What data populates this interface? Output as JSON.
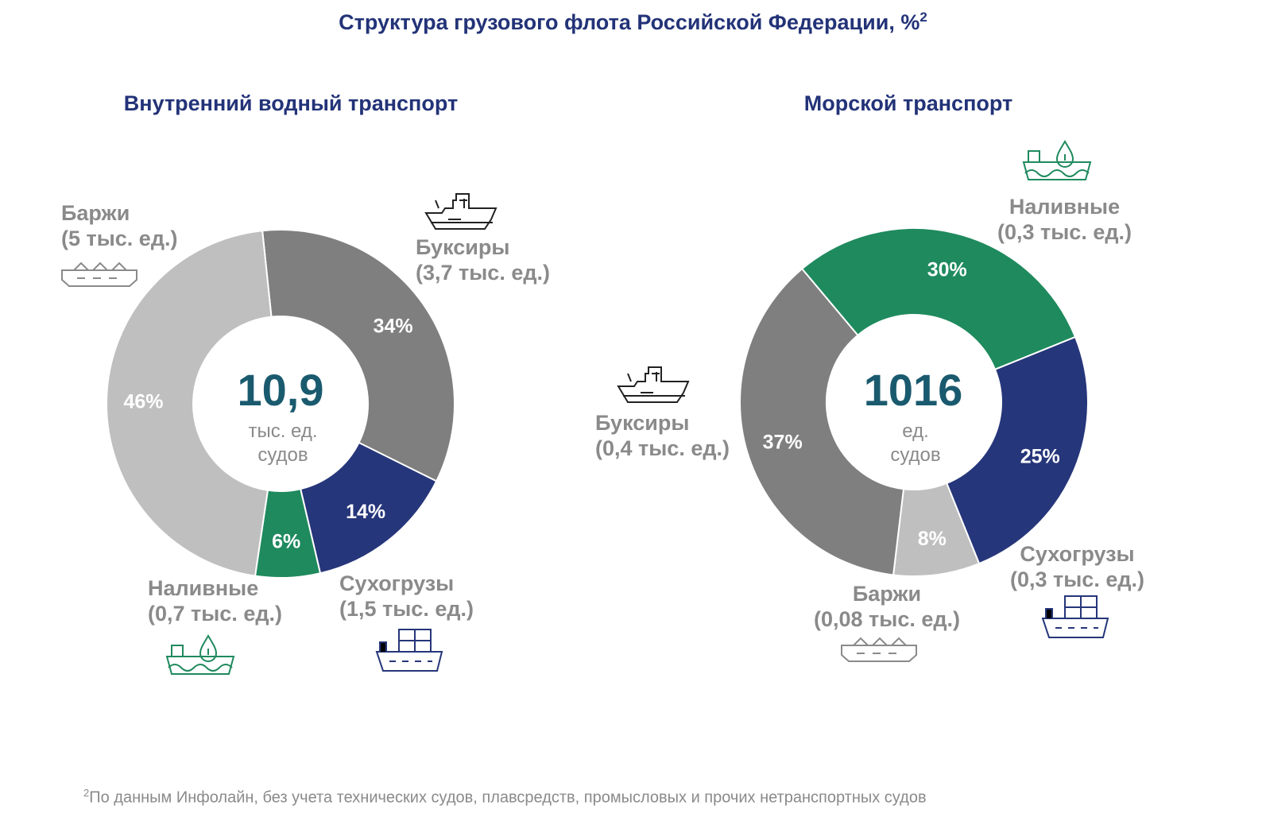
{
  "title": "Структура грузового флота Российской Федерации, %",
  "title_sup": "2",
  "colors": {
    "barges": "#bfbfbf",
    "tugs": "#7f7f7f",
    "dry": "#26367a",
    "tanker": "#1f8a5e",
    "title": "#233378"
  },
  "chart_data": [
    {
      "type": "pie",
      "title": "Внутренний водный транспорт",
      "center_value": "10,9",
      "center_unit_1": "тыс. ед.",
      "center_unit_2": "судов",
      "categories": [
        "Баржи",
        "Буксиры",
        "Сухогрузы",
        "Наливные"
      ],
      "values": [
        46,
        34,
        14,
        6
      ],
      "value_labels": [
        "46%",
        "34%",
        "14%",
        "6%"
      ],
      "counts": [
        "(5 тыс. ед.)",
        "(3,7 тыс. ед.)",
        "(1,5 тыс. ед.)",
        "(0,7 тыс. ед.)"
      ]
    },
    {
      "type": "pie",
      "title": "Морской транспорт",
      "center_value": "1016",
      "center_unit_1": "ед.",
      "center_unit_2": "судов",
      "categories": [
        "Наливные",
        "Сухогрузы",
        "Баржи",
        "Буксиры"
      ],
      "values": [
        30,
        25,
        8,
        37
      ],
      "value_labels": [
        "30%",
        "25%",
        "8%",
        "37%"
      ],
      "counts": [
        "(0,3 тыс. ед.)",
        "(0,3 тыс. ед.)",
        "(0,08 тыс. ед.)",
        "(0,4 тыс. ед.)"
      ]
    }
  ],
  "footnote_sup": "2",
  "footnote": "По данным Инфолайн, без учета технических судов, плавсредств, промысловых и прочих нетранспортных судов",
  "icons": {
    "barge": "barge-icon",
    "tug": "tug-icon",
    "dry": "dry-cargo-ship-icon",
    "tanker": "tanker-ship-icon"
  }
}
